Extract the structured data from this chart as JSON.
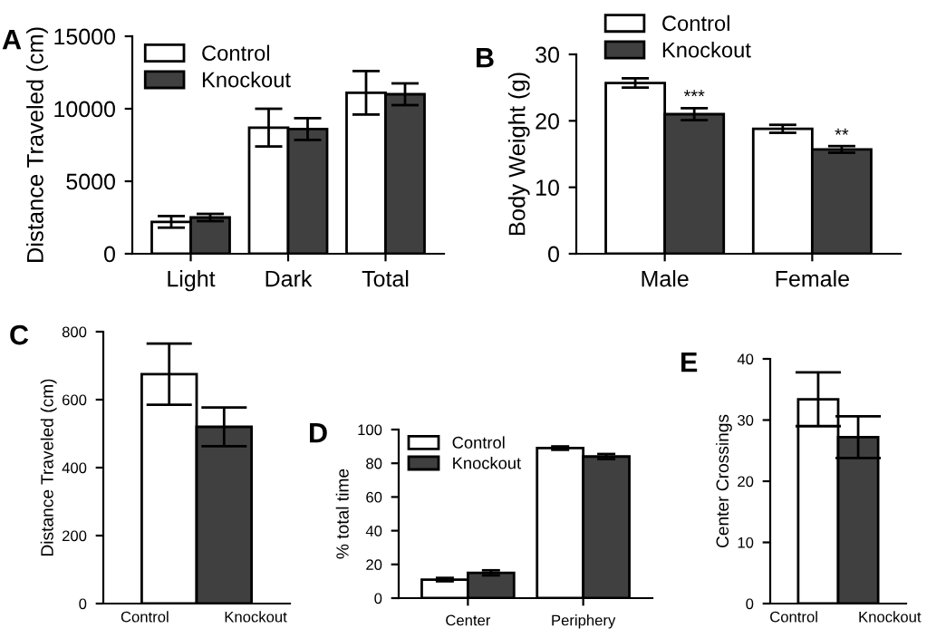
{
  "chart_data": [
    {
      "type": "bar",
      "title": "A",
      "ylabel": "Distance Traveled (cm)",
      "categories": [
        "Light",
        "Dark",
        "Total"
      ],
      "series": [
        {
          "name": "Control",
          "color": "#ffffff",
          "values": [
            2200,
            8700,
            11100
          ],
          "errors": [
            400,
            1300,
            1500
          ]
        },
        {
          "name": "Knockout",
          "color": "#404040",
          "values": [
            2500,
            8600,
            11000
          ],
          "errors": [
            250,
            750,
            750
          ]
        }
      ],
      "ylim": [
        0,
        15000
      ],
      "yticks": [
        0,
        5000,
        10000,
        15000
      ],
      "legend": "top left",
      "grid": false
    },
    {
      "type": "bar",
      "title": "B",
      "ylabel": "Body Weight (g)",
      "categories": [
        "Male",
        "Female"
      ],
      "series": [
        {
          "name": "Control",
          "color": "#ffffff",
          "values": [
            25.7,
            18.8
          ],
          "errors": [
            0.7,
            0.6
          ]
        },
        {
          "name": "Knockout",
          "color": "#404040",
          "values": [
            21.0,
            15.7
          ],
          "errors": [
            0.9,
            0.5
          ]
        }
      ],
      "ylim": [
        0,
        30
      ],
      "yticks": [
        0,
        10,
        20,
        30
      ],
      "legend": "top",
      "grid": false,
      "annotations": [
        {
          "text": "***",
          "x": "Male",
          "y": 22.2
        },
        {
          "text": "**",
          "x": "Female",
          "y": 16.4
        }
      ]
    },
    {
      "type": "bar",
      "title": "C",
      "ylabel": "Distance Traveled (cm)",
      "categories": [
        "Control",
        "Knockout"
      ],
      "values": [
        675,
        520
      ],
      "errors": [
        90,
        57
      ],
      "colors": [
        "#ffffff",
        "#404040"
      ],
      "ylim": [
        0,
        800
      ],
      "yticks": [
        0,
        200,
        400,
        600,
        800
      ],
      "grid": false
    },
    {
      "type": "bar",
      "title": "D",
      "ylabel": "% total time",
      "categories": [
        "Center",
        "Periphery"
      ],
      "series": [
        {
          "name": "Control",
          "color": "#ffffff",
          "values": [
            11,
            89
          ],
          "errors": [
            1,
            1
          ]
        },
        {
          "name": "Knockout",
          "color": "#404040",
          "values": [
            15,
            84
          ],
          "errors": [
            1.5,
            1.5
          ]
        }
      ],
      "ylim": [
        0,
        100
      ],
      "yticks": [
        0,
        20,
        40,
        60,
        80,
        100
      ],
      "legend": "top left",
      "grid": false
    },
    {
      "type": "bar",
      "title": "E",
      "ylabel": "Center Crossings",
      "categories": [
        "Control",
        "Knockout"
      ],
      "values": [
        33.4,
        27.2
      ],
      "errors": [
        4.4,
        3.4
      ],
      "colors": [
        "#ffffff",
        "#404040"
      ],
      "ylim": [
        0,
        40
      ],
      "yticks": [
        0,
        10,
        20,
        30,
        40
      ],
      "grid": false
    }
  ]
}
